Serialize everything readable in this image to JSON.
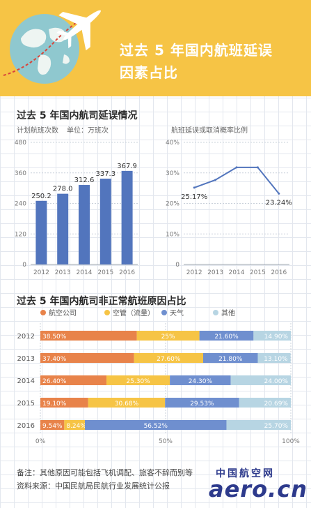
{
  "header": {
    "title_line1": "过去 5 年国内航班延误",
    "title_line2": "因素占比"
  },
  "section1": {
    "title": "过去 5 年国内航司延误情况",
    "left_ylabel": "计划航班次数",
    "left_unit": "单位：万班次",
    "right_ylabel": "航班延误或取消概率比例"
  },
  "section2": {
    "title": "过去 5 年国内航司非正常航班原因占比"
  },
  "notes": {
    "note1": "备注：其他原因可能包括飞机调配、旅客不辞而别等",
    "note2": "资料来源：中国民航局民航行业发展统计公报"
  },
  "watermark": {
    "cn": "中国航空网",
    "en": "aero.cn"
  },
  "colors": {
    "header": "#f6c445",
    "bar": "#5275bd",
    "line": "#5275bd",
    "airline": "#e8834a",
    "atc": "#f6c445",
    "weather": "#6f8fcf",
    "other": "#b7d5e3"
  },
  "chart_data": [
    {
      "type": "bar",
      "title": "过去 5 年国内航司延误情况",
      "ylabel": "计划航班次数",
      "unit": "单位：万班次",
      "categories": [
        "2012",
        "2013",
        "2014",
        "2015",
        "2016"
      ],
      "values": [
        250.2,
        278.0,
        312.6,
        337.3,
        367.9
      ],
      "value_labels": [
        "250.2",
        "278.0",
        "312.6",
        "337.3",
        "367.9"
      ],
      "ylim": [
        0,
        480
      ],
      "yticks": [
        0,
        120,
        240,
        360,
        480
      ],
      "ytick_labels": [
        "0",
        "120",
        "240",
        "360",
        "480"
      ],
      "grid": true
    },
    {
      "type": "line",
      "ylabel": "航班延误或取消概率比例",
      "categories": [
        "2012",
        "2013",
        "2014",
        "2015",
        "2016"
      ],
      "values": [
        25.17,
        27.7,
        31.8,
        31.8,
        23.24
      ],
      "annotations": [
        {
          "index": 0,
          "text": "25.17%"
        },
        {
          "index": 4,
          "text": "23.24%"
        }
      ],
      "ylim": [
        0,
        40
      ],
      "yticks": [
        0,
        10,
        20,
        30,
        40
      ],
      "ytick_labels": [
        "0",
        "10%",
        "20%",
        "30%",
        "40%"
      ],
      "grid": true
    },
    {
      "type": "bar",
      "orientation": "horizontal",
      "stacked": true,
      "title": "过去 5 年国内航司非正常航班原因占比",
      "categories": [
        "2012",
        "2013",
        "2014",
        "2015",
        "2016"
      ],
      "series": [
        {
          "name": "航空公司",
          "values": [
            38.5,
            37.4,
            26.4,
            19.1,
            9.54
          ],
          "labels": [
            "38.50%",
            "37.40%",
            "26.40%",
            "19.10%",
            "9.54%"
          ]
        },
        {
          "name": "空管（流量）",
          "values": [
            25.0,
            27.6,
            25.3,
            30.68,
            8.24
          ],
          "labels": [
            "25%",
            "27.60%",
            "25.30%",
            "30.68%",
            "8.24%"
          ]
        },
        {
          "name": "天气",
          "values": [
            21.6,
            21.8,
            24.3,
            29.53,
            56.52
          ],
          "labels": [
            "21.60%",
            "21.80%",
            "24.30%",
            "29.53%",
            "56.52%"
          ]
        },
        {
          "name": "其他",
          "values": [
            14.9,
            13.1,
            24.0,
            20.69,
            25.7
          ],
          "labels": [
            "14.90%",
            "13.10%",
            "24.00%",
            "20.69%",
            "25.70%"
          ]
        }
      ],
      "xlim": [
        0,
        100
      ],
      "xticks": [
        0,
        50,
        100
      ],
      "xtick_labels": [
        "0%",
        "50%",
        "100%"
      ],
      "legend": "top"
    }
  ]
}
